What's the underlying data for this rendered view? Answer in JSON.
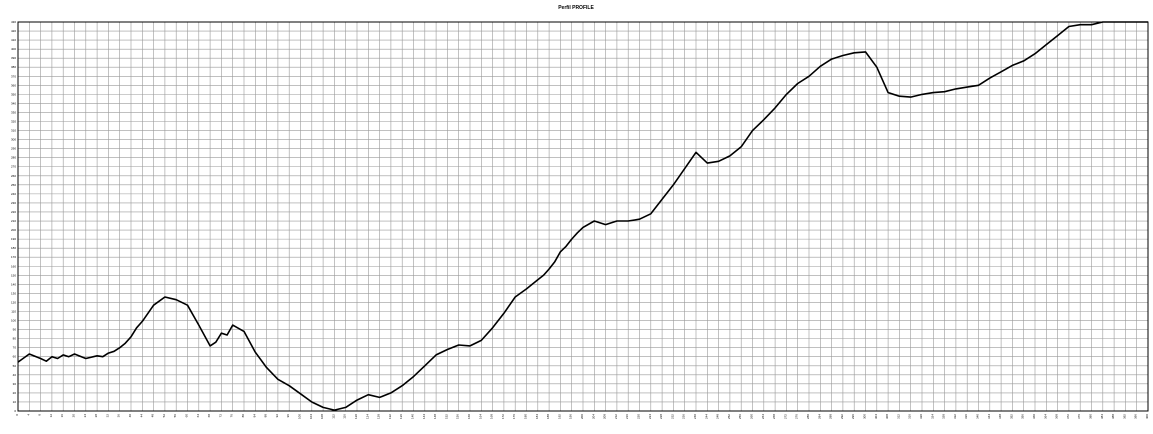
{
  "chart_data": {
    "type": "line",
    "title": "Perfil PROFILE",
    "xlabel": "",
    "ylabel": "",
    "xlim": [
      0,
      400
    ],
    "ylim": [
      0,
      430
    ],
    "x_tick_step": 4,
    "y_tick_step": 10,
    "grid": true,
    "legend": "none",
    "line_color": "#000000",
    "series": [
      {
        "x": [
          0,
          4,
          8,
          10,
          12,
          14,
          16,
          18,
          20,
          24,
          28,
          30,
          32,
          34,
          36,
          38,
          40,
          42,
          44,
          48,
          52,
          56,
          60,
          64,
          68,
          70,
          72,
          74,
          76,
          80,
          84,
          88,
          92,
          96,
          100,
          104,
          108,
          112,
          116,
          120,
          124,
          128,
          132,
          136,
          140,
          144,
          148,
          152,
          156,
          160,
          164,
          168,
          172,
          176,
          180,
          184,
          186,
          188,
          190,
          192,
          194,
          196,
          198,
          200,
          204,
          208,
          212,
          216,
          220,
          224,
          228,
          232,
          236,
          240,
          244,
          248,
          252,
          256,
          260,
          264,
          268,
          272,
          276,
          280,
          284,
          288,
          292,
          296,
          300,
          304,
          308,
          312,
          316,
          320,
          324,
          328,
          332,
          336,
          340,
          344,
          348,
          352,
          356,
          360,
          364,
          368,
          372,
          376,
          380,
          384,
          388,
          392,
          396,
          400
        ],
        "y": [
          54,
          63,
          58,
          55,
          60,
          58,
          62,
          60,
          63,
          58,
          61,
          60,
          64,
          66,
          70,
          75,
          82,
          92,
          99,
          117,
          126,
          123,
          117,
          95,
          72,
          76,
          86,
          84,
          95,
          88,
          65,
          48,
          35,
          28,
          19,
          10,
          4,
          1,
          4,
          12,
          18,
          15,
          20,
          28,
          38,
          50,
          62,
          68,
          73,
          72,
          78,
          92,
          108,
          126,
          135,
          145,
          150,
          157,
          165,
          176,
          182,
          190,
          197,
          203,
          210,
          206,
          210,
          210,
          212,
          218,
          234,
          250,
          268,
          286,
          274,
          276,
          282,
          292,
          310,
          322,
          335,
          350,
          362,
          370,
          381,
          389,
          393,
          396,
          397,
          380,
          352,
          348,
          347,
          350,
          352,
          353,
          356,
          358,
          360,
          368,
          375,
          382,
          387,
          395,
          405,
          415,
          425,
          427,
          427,
          430,
          430,
          430,
          430,
          430
        ]
      }
    ]
  }
}
